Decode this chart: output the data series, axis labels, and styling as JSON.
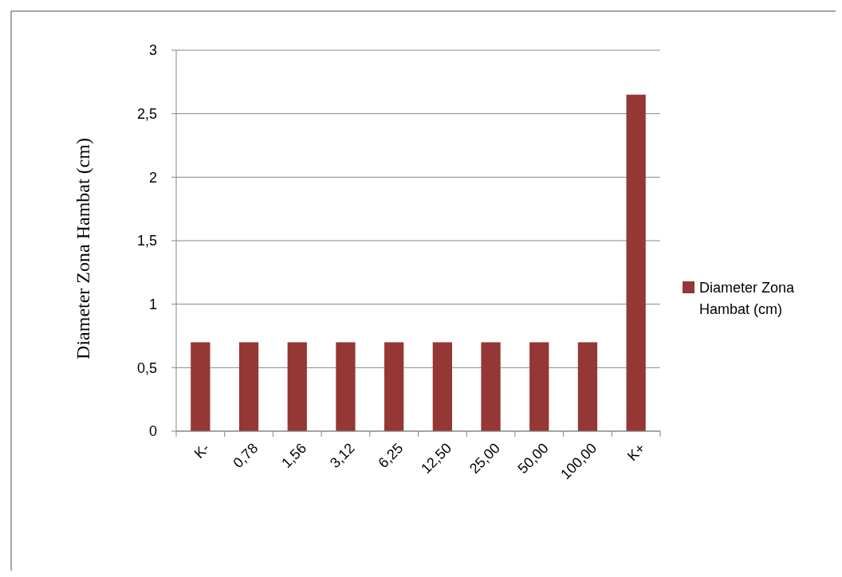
{
  "chart_data": {
    "type": "bar",
    "ylabel": "Diameter Zona Hambat (cm)",
    "categories": [
      "K-",
      "0,78",
      "1,56",
      "3,12",
      "6,25",
      "12,50",
      "25,00",
      "50,00",
      "100,00",
      "K+"
    ],
    "series": [
      {
        "name": "Diameter Zona Hambat (cm)",
        "color": "#953735",
        "values": [
          0.7,
          0.7,
          0.7,
          0.7,
          0.7,
          0.7,
          0.7,
          0.7,
          0.7,
          2.65
        ]
      }
    ],
    "ylim": [
      0,
      3
    ],
    "yticks": [
      0,
      {
        "value": 0.5,
        "label": "0,5"
      },
      1,
      {
        "value": 1.5,
        "label": "1,5"
      },
      2,
      {
        "value": 2.5,
        "label": "2,5"
      },
      3
    ],
    "grid": "y",
    "legend": "right"
  }
}
